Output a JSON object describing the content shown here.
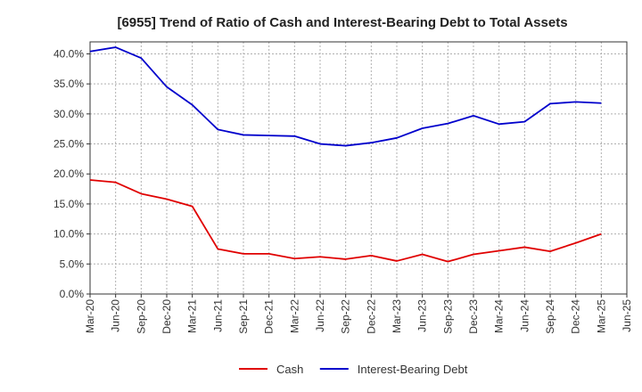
{
  "chart_data": {
    "type": "line",
    "title": "[6955]  Trend of Ratio of Cash and Interest-Bearing Debt to Total Assets",
    "xlabel": "",
    "ylabel": "",
    "x_ticks": [
      "Mar-20",
      "Jun-20",
      "Sep-20",
      "Dec-20",
      "Mar-21",
      "Jun-21",
      "Sep-21",
      "Dec-21",
      "Mar-22",
      "Jun-22",
      "Sep-22",
      "Dec-22",
      "Mar-23",
      "Jun-23",
      "Sep-23",
      "Dec-23",
      "Mar-24",
      "Jun-24",
      "Sep-24",
      "Dec-24",
      "Mar-25",
      "Jun-25"
    ],
    "y_ticks": [
      "0.0%",
      "5.0%",
      "10.0%",
      "15.0%",
      "20.0%",
      "25.0%",
      "30.0%",
      "35.0%",
      "40.0%"
    ],
    "ylim": [
      0,
      42
    ],
    "grid": true,
    "legend_position": "bottom",
    "series": [
      {
        "name": "Cash",
        "color": "#e00000",
        "x": [
          "Mar-20",
          "Jun-20",
          "Sep-20",
          "Dec-20",
          "Mar-21",
          "Jun-21",
          "Sep-21",
          "Dec-21",
          "Mar-22",
          "Jun-22",
          "Sep-22",
          "Dec-22",
          "Mar-23",
          "Jun-23",
          "Sep-23",
          "Dec-23",
          "Mar-24",
          "Jun-24",
          "Sep-24",
          "Dec-24",
          "Mar-25"
        ],
        "values": [
          19.0,
          18.6,
          16.7,
          15.8,
          14.6,
          7.5,
          6.7,
          6.7,
          5.9,
          6.2,
          5.8,
          6.4,
          5.5,
          6.6,
          5.4,
          6.6,
          7.2,
          7.8,
          7.1,
          8.5,
          10.0
        ]
      },
      {
        "name": "Interest-Bearing Debt",
        "color": "#0000cc",
        "x": [
          "Mar-20",
          "Jun-20",
          "Sep-20",
          "Dec-20",
          "Mar-21",
          "Jun-21",
          "Sep-21",
          "Dec-21",
          "Mar-22",
          "Jun-22",
          "Sep-22",
          "Dec-22",
          "Mar-23",
          "Jun-23",
          "Sep-23",
          "Dec-23",
          "Mar-24",
          "Jun-24",
          "Sep-24",
          "Dec-24",
          "Mar-25"
        ],
        "values": [
          40.4,
          41.1,
          39.3,
          34.5,
          31.5,
          27.4,
          26.5,
          26.4,
          26.3,
          25.0,
          24.7,
          25.2,
          26.0,
          27.6,
          28.4,
          29.7,
          28.3,
          28.7,
          31.7,
          32.0,
          31.8
        ]
      }
    ]
  }
}
